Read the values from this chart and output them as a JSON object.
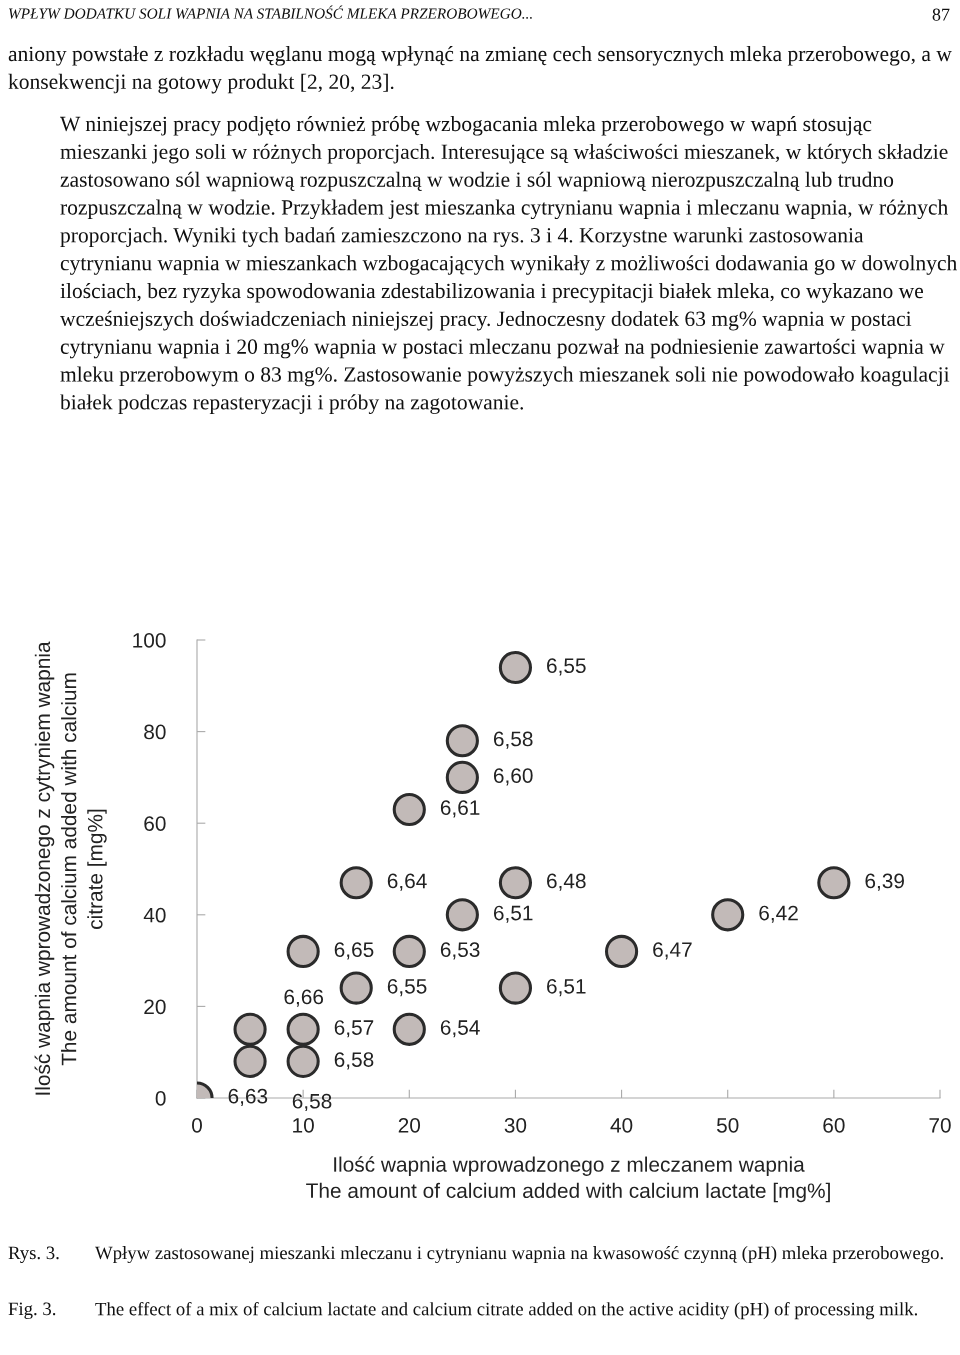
{
  "chart_data": {
    "type": "scatter",
    "xlabel": "Ilość wapnia wprowadzonego z mleczanem wapnia\nThe amount of calcium added with calcium lactate [mg%]",
    "ylabel": "Ilość wapnia wprowadzonego z cytryniem wapnia\nThe amount of calcium added with calcium\ncitrate [mg%]",
    "x": [
      0,
      5,
      5,
      10,
      10,
      10,
      15,
      15,
      20,
      20,
      20,
      25,
      25,
      25,
      30,
      30,
      30,
      40,
      50,
      60
    ],
    "values": [
      0,
      8,
      15,
      8,
      15,
      32,
      24,
      47,
      15,
      32,
      63,
      40,
      70,
      78,
      24,
      47,
      94,
      32,
      40,
      47
    ],
    "color": "#c2bab8",
    "marker": "circle",
    "xlim": [
      0,
      70
    ],
    "xticks": [
      0,
      10,
      20,
      30,
      40,
      50,
      60,
      70
    ],
    "ylim": [
      0,
      100
    ],
    "yticks": [
      0,
      20,
      40,
      60,
      80,
      100
    ],
    "annotations": [
      "WPŁYW DODATKU SOLI WAPNIA NA STABILNOŚĆ MLEKA PRZEROBOWEGO...",
      "87",
      "aniony powstałe z rozkładu węglanu mogą wpłynąć na zmianę cech sensorycznych mleka przerobowego, a w konsekwencji na gotowy produkt [2, 20, 23].",
      "W niniejszej pracy podjęto również próbę wzbogacania mleka przerobowego w wapń stosując mieszanki jego soli w różnych proporcjach. Interesujące są właściwości mieszanek, w których składzie zastosowano sól wapniową rozpuszczalną w wodzie i sól wapniową nierozpuszczalną lub trudno rozpuszczalną w wodzie. Przykładem jest mieszanka cytrynianu wapnia i mleczanu wapnia, w różnych proporcjach. Wyniki tych badań zamieszczono na rys. 3 i 4. Korzystne warunki zastosowania cytrynianu wapnia w mieszankach wzbogacających wynikały z możliwości dodawania go w dowolnych ilościach, bez ryzyka spowodowania zdestabilizowania i precypitacji białek mleka, co wykazano we wcześniejszych doświadczeniach niniejszej pracy. Jednoczesny dodatek 63 mg% wapnia w postaci cytrynianu wapnia i 20 mg% wapnia w postaci mleczanu pozwał na podniesienie zawartości wapnia w mleku przerobowym o 83 mg%. Zastosowanie powyższych mieszanek soli nie powodowało koagulacji białek podczas repasteryzacji i próby na zagotowanie.",
      "Rys. 3.",
      "Wpływ zastosowanej mieszanki mleczanu i cytrynianu wapnia na kwasowość czynną (pH) mleka przerobowego.",
      "Fig. 3.",
      "The effect of a mix of calcium lactate and calcium citrate added on the active acidity (pH) of processing milk.",
      {
        "text": "6,63",
        "x": 0,
        "y": 0
      },
      {
        "text": "6,58",
        "x": 5,
        "y": 8
      },
      {
        "text": "6,66",
        "x": 5,
        "y": 15
      },
      {
        "text": "6,58",
        "x": 10,
        "y": 8
      },
      {
        "text": "6,57",
        "x": 10,
        "y": 15
      },
      {
        "text": "6,65",
        "x": 10,
        "y": 32
      },
      {
        "text": "6,55",
        "x": 15,
        "y": 24
      },
      {
        "text": "6,64",
        "x": 15,
        "y": 47
      },
      {
        "text": "6,54",
        "x": 20,
        "y": 15
      },
      {
        "text": "6,53",
        "x": 20,
        "y": 32
      },
      {
        "text": "6,61",
        "x": 20,
        "y": 63
      },
      {
        "text": "6,51",
        "x": 25,
        "y": 40
      },
      {
        "text": "6,60",
        "x": 25,
        "y": 70
      },
      {
        "text": "6,58",
        "x": 25,
        "y": 78
      },
      {
        "text": "6,51",
        "x": 30,
        "y": 24
      },
      {
        "text": "6,48",
        "x": 30,
        "y": 47
      },
      {
        "text": "6,55",
        "x": 30,
        "y": 94
      },
      {
        "text": "6,47",
        "x": 40,
        "y": 32
      },
      {
        "text": "6,42",
        "x": 50,
        "y": 40
      },
      {
        "text": "6,39",
        "x": 60,
        "y": 47
      }
    ]
  }
}
